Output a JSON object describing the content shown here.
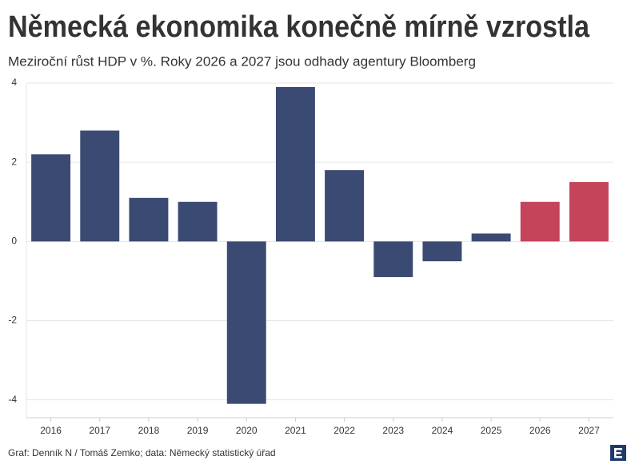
{
  "chart_data": {
    "type": "bar",
    "title": "Německá ekonomika konečně mírně vzrostla",
    "subtitle": "Meziroční růst HDP v %. Roky 2026 a 2027 jsou odhady agentury Bloomberg",
    "source": "Graf: Denník N / Tomáš Zemko; data: Německý statistický úřad",
    "categories": [
      "2016",
      "2017",
      "2018",
      "2019",
      "2020",
      "2021",
      "2022",
      "2023",
      "2024",
      "2025",
      "2026",
      "2027"
    ],
    "values": [
      2.2,
      2.8,
      1.1,
      1.0,
      -4.1,
      3.9,
      1.8,
      -0.9,
      -0.5,
      0.2,
      1.0,
      1.5
    ],
    "colors": [
      "#3b4a72",
      "#3b4a72",
      "#3b4a72",
      "#3b4a72",
      "#3b4a72",
      "#3b4a72",
      "#3b4a72",
      "#3b4a72",
      "#3b4a72",
      "#3b4a72",
      "#c4455a",
      "#c4455a"
    ],
    "ylim": [
      -4.45,
      4
    ],
    "yticks": [
      -4,
      -2,
      0,
      2,
      4
    ],
    "grid": true
  }
}
